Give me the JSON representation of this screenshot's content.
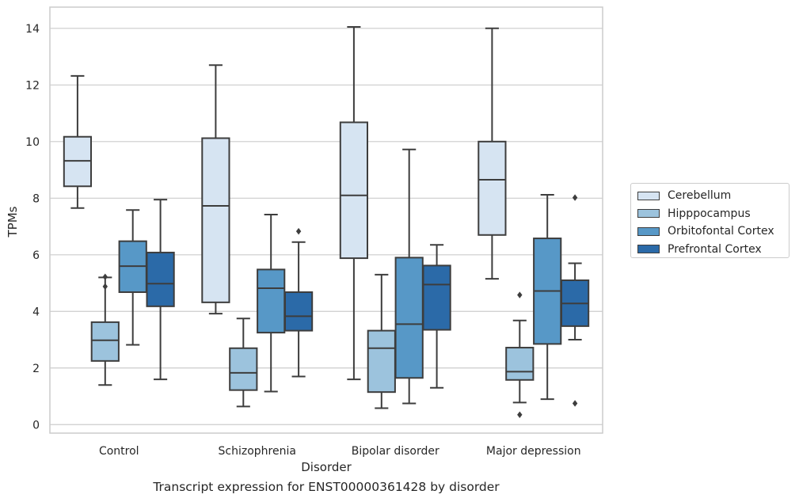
{
  "chart_data": {
    "type": "box",
    "caption": "Transcript expression for ENST00000361428 by disorder",
    "xlabel": "Disorder",
    "ylabel": "TPMs",
    "ylim": [
      -0.3,
      14.75
    ],
    "yticks": [
      0,
      2,
      4,
      6,
      8,
      10,
      12,
      14
    ],
    "grid": true,
    "legend_position": "right",
    "categories": [
      "Control",
      "Schizophrenia",
      "Bipolar disorder",
      "Major depression"
    ],
    "series": [
      {
        "name": "Cerebellum",
        "color": "#d6e4f2",
        "boxes": [
          {
            "whislo": 7.65,
            "q1": 8.42,
            "med": 9.32,
            "q3": 10.17,
            "whishi": 12.32,
            "fliers": []
          },
          {
            "whislo": 3.92,
            "q1": 4.32,
            "med": 7.73,
            "q3": 10.12,
            "whishi": 12.7,
            "fliers": []
          },
          {
            "whislo": 1.6,
            "q1": 5.88,
            "med": 8.1,
            "q3": 10.68,
            "whishi": 14.05,
            "fliers": []
          },
          {
            "whislo": 5.15,
            "q1": 6.7,
            "med": 8.65,
            "q3": 10.0,
            "whishi": 14.0,
            "fliers": []
          }
        ]
      },
      {
        "name": "Hipppocampus",
        "color": "#9cc3dd",
        "boxes": [
          {
            "whislo": 1.4,
            "q1": 2.25,
            "med": 2.98,
            "q3": 3.62,
            "whishi": 5.2,
            "fliers": [
              4.88,
              5.22
            ]
          },
          {
            "whislo": 0.64,
            "q1": 1.22,
            "med": 1.83,
            "q3": 2.7,
            "whishi": 3.75,
            "fliers": []
          },
          {
            "whislo": 0.58,
            "q1": 1.15,
            "med": 2.7,
            "q3": 3.32,
            "whishi": 5.3,
            "fliers": []
          },
          {
            "whislo": 0.78,
            "q1": 1.58,
            "med": 1.87,
            "q3": 2.72,
            "whishi": 3.68,
            "fliers": [
              0.35,
              4.58
            ]
          }
        ]
      },
      {
        "name": "Orbitofontal Cortex",
        "color": "#5798c7",
        "boxes": [
          {
            "whislo": 2.82,
            "q1": 4.68,
            "med": 5.6,
            "q3": 6.48,
            "whishi": 7.58,
            "fliers": []
          },
          {
            "whislo": 1.17,
            "q1": 3.25,
            "med": 4.82,
            "q3": 5.48,
            "whishi": 7.42,
            "fliers": []
          },
          {
            "whislo": 0.75,
            "q1": 1.65,
            "med": 3.55,
            "q3": 5.9,
            "whishi": 9.72,
            "fliers": []
          },
          {
            "whislo": 0.9,
            "q1": 2.85,
            "med": 4.72,
            "q3": 6.58,
            "whishi": 8.12,
            "fliers": []
          }
        ]
      },
      {
        "name": "Prefrontal Cortex",
        "color": "#2b6aa8",
        "boxes": [
          {
            "whislo": 1.6,
            "q1": 4.18,
            "med": 4.98,
            "q3": 6.08,
            "whishi": 7.95,
            "fliers": []
          },
          {
            "whislo": 1.7,
            "q1": 3.32,
            "med": 3.83,
            "q3": 4.68,
            "whishi": 6.45,
            "fliers": [
              6.83
            ]
          },
          {
            "whislo": 1.3,
            "q1": 3.35,
            "med": 4.95,
            "q3": 5.62,
            "whishi": 6.35,
            "fliers": []
          },
          {
            "whislo": 3.0,
            "q1": 3.48,
            "med": 4.28,
            "q3": 5.1,
            "whishi": 5.7,
            "fliers": [
              0.75,
              8.02
            ]
          }
        ]
      }
    ]
  }
}
